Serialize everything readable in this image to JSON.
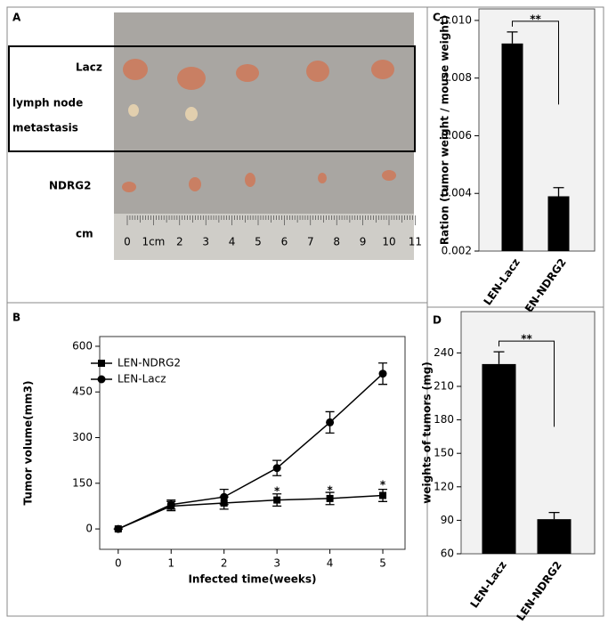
{
  "photo": {
    "panel_label": "A",
    "labels": [
      "Lacz",
      "lymph node",
      "metastasis",
      "NDRG2",
      "cm"
    ],
    "ruler_labels": [
      "0",
      "1cm",
      "2",
      "3",
      "4",
      "5",
      "6",
      "7",
      "8",
      "9",
      "10",
      "11"
    ]
  },
  "chart_data": [
    {
      "type": "line",
      "panel_label": "B",
      "xlabel": "Infected time(weeks)",
      "ylabel": "Tumor volume(mm3)",
      "x": [
        0,
        1,
        2,
        3,
        4,
        5
      ],
      "xlim": [
        -0.35,
        5.42
      ],
      "xticks": [
        0,
        1,
        2,
        3,
        4,
        5
      ],
      "ylim": [
        -67,
        632
      ],
      "yticks": [
        0,
        150,
        300,
        450,
        600
      ],
      "legend": "upper left",
      "series": [
        {
          "name": "LEN-NDRG2",
          "color": "#000000",
          "marker": "square",
          "values": [
            0,
            75,
            85,
            95,
            100,
            110
          ],
          "errors": [
            0,
            15,
            20,
            20,
            20,
            20
          ]
        },
        {
          "name": "LEN-Lacz",
          "color": "#000000",
          "marker": "circle",
          "values": [
            0,
            80,
            105,
            200,
            350,
            510
          ],
          "errors": [
            0,
            15,
            25,
            25,
            35,
            35
          ]
        }
      ],
      "annotations": [
        {
          "text": "*",
          "x": 3,
          "y": 135
        },
        {
          "text": "*",
          "x": 4,
          "y": 137
        },
        {
          "text": "*",
          "x": 5,
          "y": 155
        }
      ]
    },
    {
      "type": "bar",
      "panel_label": "C",
      "ylabel": "Ration (tumor weight / mouse weight)",
      "categories": [
        "LEN-Lacz",
        "LEN-NDRG2"
      ],
      "values": [
        0.0092,
        0.0039
      ],
      "errors": [
        0.0004,
        0.0003
      ],
      "color": "#000000",
      "ylim": [
        0.002,
        0.0104
      ],
      "yticks": [
        0.002,
        0.004,
        0.006,
        0.008,
        {
          "value": 0.01,
          "label": "0.010"
        }
      ],
      "significance": "**"
    },
    {
      "type": "bar",
      "panel_label": "D",
      "ylabel": "weights of tumors (mg)",
      "categories": [
        "LEN-Lacz",
        "LEN-NDRG2"
      ],
      "values": [
        230,
        91
      ],
      "errors": [
        11,
        6
      ],
      "color": "#000000",
      "ylim": [
        60,
        277
      ],
      "yticks": [
        60,
        90,
        120,
        150,
        180,
        210,
        240
      ],
      "significance": "**"
    }
  ]
}
